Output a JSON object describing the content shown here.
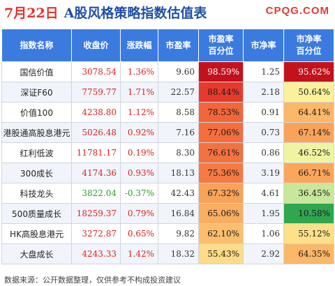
{
  "header": {
    "date": "7月22日",
    "title": "A股风格策略指数估值表",
    "brand": "CPQG.COM"
  },
  "table": {
    "columns": [
      "指数名称",
      "收盘价",
      "涨跌幅",
      "市盈率",
      "市盈率\n百分位",
      "市净率",
      "市净率\n百分位"
    ],
    "rows": [
      {
        "name": "国信价值",
        "close": "3078.54",
        "change": "1.36%",
        "dir": "up",
        "pe": "9.60",
        "pe_pct": "98.59%",
        "pb": "1.25",
        "pb_pct": "95.62%",
        "pe_color": "#c3121c",
        "pb_color": "#c3121c"
      },
      {
        "name": "深证F60",
        "close": "7759.77",
        "change": "1.71%",
        "dir": "up",
        "pe": "22.57",
        "pe_pct": "88.44%",
        "pb": "2.18",
        "pb_pct": "50.64%",
        "pe_color": "#e83a2c",
        "pb_color": "#fbf19a"
      },
      {
        "name": "价值100",
        "close": "4238.80",
        "change": "1.12%",
        "dir": "up",
        "pe": "8.58",
        "pe_pct": "78.53%",
        "pb": "0.91",
        "pb_pct": "64.41%",
        "pe_color": "#f3663b",
        "pb_color": "#fbb869"
      },
      {
        "name": "港股通高股息港元",
        "close": "5026.48",
        "change": "0.92%",
        "dir": "up",
        "pe": "7.16",
        "pe_pct": "77.06%",
        "pb": "0.73",
        "pb_pct": "67.14%",
        "pe_color": "#f46e3e",
        "pb_color": "#f9a35a"
      },
      {
        "name": "红利低波",
        "close": "11781.17",
        "change": "0.19%",
        "dir": "up",
        "pe": "8.30",
        "pe_pct": "76.61%",
        "pb": "0.86",
        "pb_pct": "46.52%",
        "pe_color": "#f47240",
        "pb_color": "#eef5a2"
      },
      {
        "name": "300成长",
        "close": "4174.36",
        "change": "0.93%",
        "dir": "up",
        "pe": "18.13",
        "pe_pct": "75.36%",
        "pb": "3.19",
        "pb_pct": "66.71%",
        "pe_color": "#f57a43",
        "pb_color": "#faa75d"
      },
      {
        "name": "科技龙头",
        "close": "3822.04",
        "change": "-0.37%",
        "dir": "down",
        "pe": "42.43",
        "pe_pct": "67.32%",
        "pb": "4.61",
        "pb_pct": "36.45%",
        "pe_color": "#f8a25a",
        "pb_color": "#c9e79b"
      },
      {
        "name": "500质量成长",
        "close": "18259.37",
        "change": "0.79%",
        "dir": "up",
        "pe": "16.84",
        "pe_pct": "65.06%",
        "pb": "1.95",
        "pb_pct": "10.58%",
        "pe_color": "#f9ae62",
        "pb_color": "#2fa64f"
      },
      {
        "name": "HK高股息港元",
        "close": "3272.87",
        "change": "0.65%",
        "dir": "up",
        "pe": "9.82",
        "pe_pct": "62.10%",
        "pb": "1.06",
        "pb_pct": "55.12%",
        "pe_color": "#fbbe6c",
        "pb_color": "#fce08a"
      },
      {
        "name": "大盘成长",
        "close": "4243.33",
        "change": "1.42%",
        "dir": "up",
        "pe": "18.32",
        "pe_pct": "55.43%",
        "pb": "2.92",
        "pb_pct": "64.35%",
        "pe_color": "#fcdc86",
        "pb_color": "#fbb869"
      }
    ]
  },
  "footer": "数据来源：公开数据整理，仅供参考不构成投资建议"
}
